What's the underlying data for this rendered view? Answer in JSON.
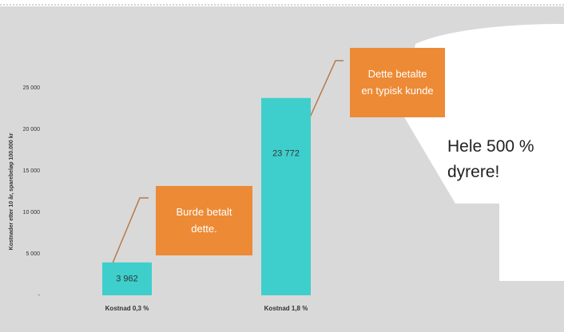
{
  "chart_data": {
    "type": "bar",
    "y_label": "Kostnader etter 10 år, sparebeløp 100.000 kr",
    "categories": [
      "Kostnad 0,3 %",
      "Kostnad 1,8 %"
    ],
    "values": [
      3962,
      23772
    ],
    "value_labels": [
      "3 962",
      "23 772"
    ],
    "color": "#3ecfcc",
    "ylim": [
      0,
      25000
    ],
    "yticks": [
      {
        "value": 0,
        "label": "-"
      },
      {
        "value": 5000,
        "label": "5 000"
      },
      {
        "value": 10000,
        "label": "10 000"
      },
      {
        "value": 15000,
        "label": "15 000"
      },
      {
        "value": 20000,
        "label": "20 000"
      },
      {
        "value": 25000,
        "label": "25 000"
      }
    ],
    "annotations": [
      "Burde betalt dette.",
      "Dette betalte en typisk kunde",
      "Hele 500 % dyrere!"
    ]
  }
}
